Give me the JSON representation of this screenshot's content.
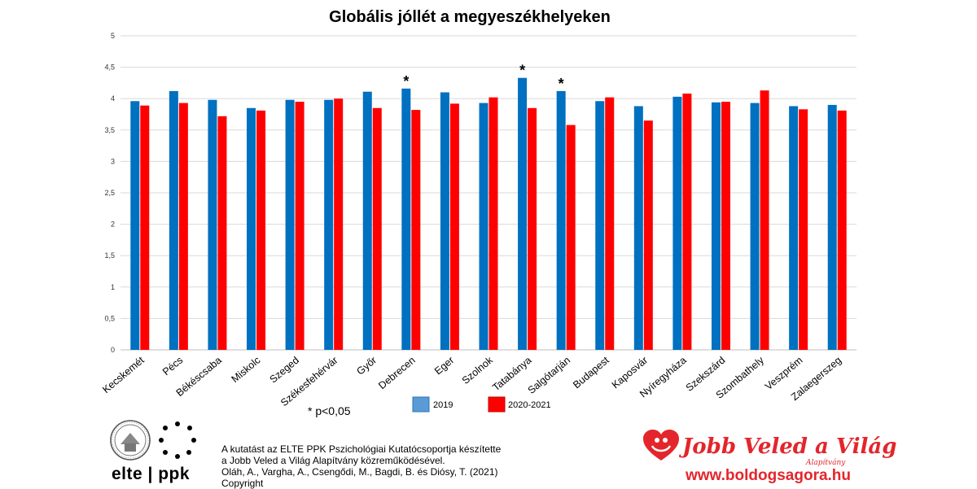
{
  "chart_data": {
    "type": "bar",
    "title": "Globális jóllét a megyeszékhelyeken",
    "xlabel": "",
    "ylabel": "",
    "ylim": [
      0,
      5
    ],
    "yticks": [
      "0",
      "0,5",
      "1",
      "1,5",
      "2",
      "2,5",
      "3",
      "3,5",
      "4",
      "4,5",
      "5"
    ],
    "grid": true,
    "legend_position": "bottom",
    "categories": [
      "Kecskemét",
      "Pécs",
      "Békéscsaba",
      "Miskolc",
      "Szeged",
      "Székesfehérvár",
      "Győr",
      "Debrecen",
      "Eger",
      "Szolnok",
      "Tatabánya",
      "Salgótarján",
      "Budapest",
      "Kaposvár",
      "Nyíregyháza",
      "Szekszárd",
      "Szombathely",
      "Veszprém",
      "Zalaegerszeg"
    ],
    "series": [
      {
        "name": "2019",
        "color": "#0070c0",
        "values": [
          3.96,
          4.12,
          3.98,
          3.85,
          3.98,
          3.98,
          4.11,
          4.16,
          4.1,
          3.93,
          4.33,
          4.12,
          3.96,
          3.88,
          4.03,
          3.94,
          3.93,
          3.88,
          3.9
        ]
      },
      {
        "name": "2020-2021",
        "color": "#ff0000",
        "values": [
          3.89,
          3.93,
          3.72,
          3.81,
          3.95,
          4.0,
          3.85,
          3.82,
          3.92,
          4.02,
          3.85,
          3.58,
          4.02,
          3.65,
          4.08,
          3.95,
          4.13,
          3.83,
          3.81
        ]
      }
    ],
    "significant": [
      false,
      false,
      false,
      false,
      false,
      false,
      false,
      true,
      false,
      false,
      true,
      true,
      false,
      false,
      false,
      false,
      false,
      false,
      false
    ],
    "significance_marker": "*",
    "significance_note": "* p<0,05"
  },
  "footer": {
    "lines": [
      "A kutatást az ELTE PPK Pszichológiai Kutatócsoportja készítette",
      "a Jobb Veled a Világ Alapítvány közreműködésével.",
      "Oláh, A., Vargha, A., Csengődi, M., Bagdi, B. és Diósy, T.  (2021)",
      "Copyright"
    ],
    "elte_logo_text": "elte | ppk",
    "brand_name": "Jobb Veled a Világ",
    "brand_sub": "Alapítvány",
    "brand_url": "www.boldogsagora.hu",
    "brand_color": "#e3262b"
  }
}
